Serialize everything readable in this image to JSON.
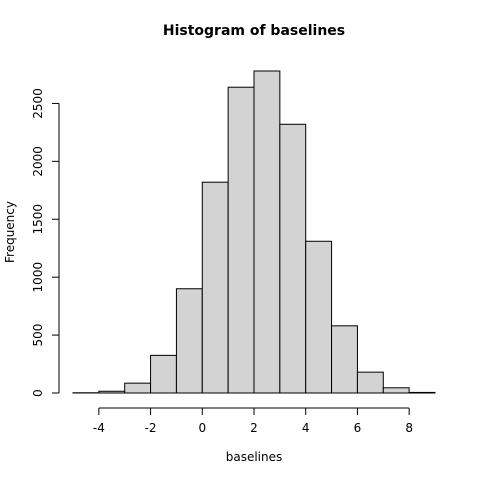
{
  "chart_data": {
    "type": "bar",
    "title": "Histogram of baselines",
    "xlabel": "baselines",
    "ylabel": "Frequency",
    "bins": [
      {
        "from": -5,
        "to": -4,
        "count": 2
      },
      {
        "from": -4,
        "to": -3,
        "count": 15
      },
      {
        "from": -3,
        "to": -2,
        "count": 85
      },
      {
        "from": -2,
        "to": -1,
        "count": 325
      },
      {
        "from": -1,
        "to": 0,
        "count": 900
      },
      {
        "from": 0,
        "to": 1,
        "count": 1820
      },
      {
        "from": 1,
        "to": 2,
        "count": 2640
      },
      {
        "from": 2,
        "to": 3,
        "count": 2780
      },
      {
        "from": 3,
        "to": 4,
        "count": 2320
      },
      {
        "from": 4,
        "to": 5,
        "count": 1310
      },
      {
        "from": 5,
        "to": 6,
        "count": 580
      },
      {
        "from": 6,
        "to": 7,
        "count": 180
      },
      {
        "from": 7,
        "to": 8,
        "count": 45
      },
      {
        "from": 8,
        "to": 9,
        "count": 5
      }
    ],
    "xticks": [
      -4,
      -2,
      0,
      2,
      4,
      6,
      8
    ],
    "yticks": [
      0,
      500,
      1000,
      1500,
      2000,
      2500
    ],
    "xlim": [
      -5,
      9
    ],
    "ylim": [
      0,
      2780
    ],
    "bar_color": "#d3d3d3",
    "edge_color": "#000000",
    "grid": false,
    "legend": "none"
  }
}
